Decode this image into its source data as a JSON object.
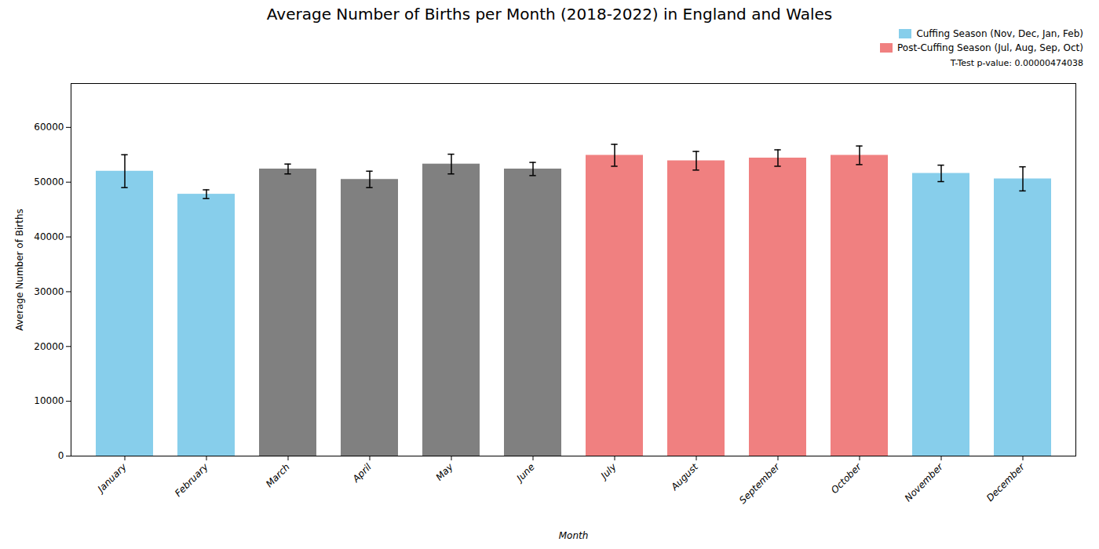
{
  "chart_data": {
    "type": "bar",
    "title": "Average Number of Births per Month (2018-2022) in England and Wales",
    "xlabel": "Month",
    "ylabel": "Average Number of Births",
    "categories": [
      "January",
      "February",
      "March",
      "April",
      "May",
      "June",
      "July",
      "August",
      "September",
      "October",
      "November",
      "December"
    ],
    "values": [
      52000,
      47800,
      52400,
      50500,
      53300,
      52400,
      54900,
      53900,
      54400,
      54900,
      51600,
      50600
    ],
    "errors": [
      3000,
      800,
      900,
      1500,
      1800,
      1200,
      2000,
      1700,
      1500,
      1700,
      1500,
      2200
    ],
    "colors": [
      "#87CEEB",
      "#87CEEB",
      "#808080",
      "#808080",
      "#808080",
      "#808080",
      "#F08080",
      "#F08080",
      "#F08080",
      "#F08080",
      "#87CEEB",
      "#87CEEB"
    ],
    "legend": "upper right",
    "legend_entries": [
      {
        "label": "Cuffing Season (Nov, Dec, Jan, Feb)",
        "color": "#87CEEB"
      },
      {
        "label": "Post-Cuffing Season (Jul, Aug, Sep, Oct)",
        "color": "#F08080"
      }
    ],
    "annotation": "T-Test p-value: 0.00000474038",
    "ylim": [
      0,
      68000
    ],
    "yticks": [
      0,
      10000,
      20000,
      30000,
      40000,
      50000,
      60000
    ],
    "grid": false
  }
}
